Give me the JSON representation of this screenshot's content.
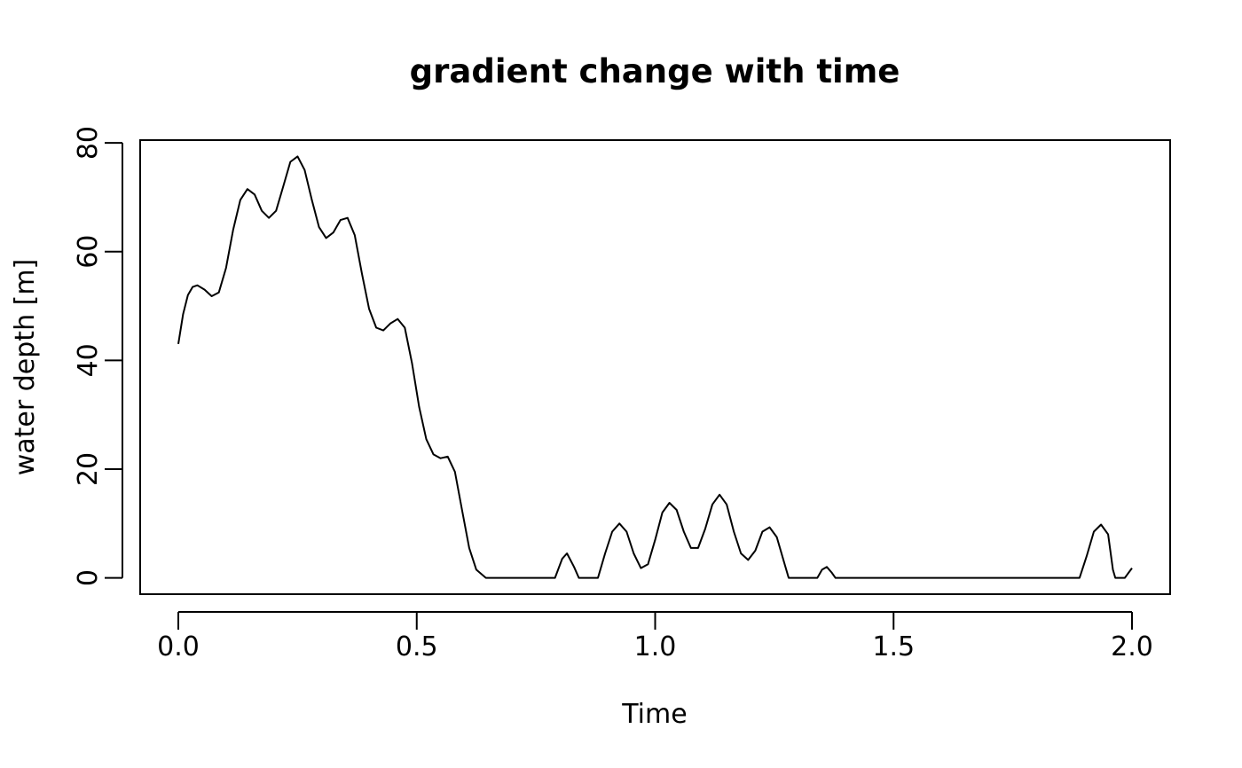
{
  "chart_data": {
    "type": "line",
    "title": "gradient change with time",
    "xlabel": "Time",
    "ylabel": "water depth [m]",
    "xlim": [
      -0.08,
      2.08
    ],
    "ylim": [
      -3,
      80.5
    ],
    "grid": false,
    "x_ticks": [
      "0.0",
      "0.5",
      "1.0",
      "1.5",
      "2.0"
    ],
    "y_ticks": [
      "0",
      "20",
      "40",
      "60",
      "80"
    ],
    "series": [
      {
        "color": "#000000",
        "points": [
          [
            0.0,
            43
          ],
          [
            0.01,
            48.5
          ],
          [
            0.02,
            52
          ],
          [
            0.03,
            53.5
          ],
          [
            0.04,
            53.8
          ],
          [
            0.055,
            53
          ],
          [
            0.07,
            51.8
          ],
          [
            0.085,
            52.5
          ],
          [
            0.1,
            57
          ],
          [
            0.115,
            64
          ],
          [
            0.13,
            69.5
          ],
          [
            0.145,
            71.5
          ],
          [
            0.16,
            70.5
          ],
          [
            0.175,
            67.5
          ],
          [
            0.19,
            66.2
          ],
          [
            0.205,
            67.5
          ],
          [
            0.22,
            72
          ],
          [
            0.235,
            76.5
          ],
          [
            0.25,
            77.5
          ],
          [
            0.265,
            75
          ],
          [
            0.28,
            69.5
          ],
          [
            0.295,
            64.5
          ],
          [
            0.31,
            62.5
          ],
          [
            0.325,
            63.5
          ],
          [
            0.34,
            65.8
          ],
          [
            0.355,
            66.2
          ],
          [
            0.37,
            63
          ],
          [
            0.385,
            56
          ],
          [
            0.4,
            49.5
          ],
          [
            0.415,
            46
          ],
          [
            0.43,
            45.5
          ],
          [
            0.445,
            46.8
          ],
          [
            0.46,
            47.6
          ],
          [
            0.475,
            46
          ],
          [
            0.49,
            39.5
          ],
          [
            0.505,
            31.5
          ],
          [
            0.52,
            25.5
          ],
          [
            0.535,
            22.7
          ],
          [
            0.55,
            22
          ],
          [
            0.565,
            22.3
          ],
          [
            0.58,
            19.5
          ],
          [
            0.595,
            12.5
          ],
          [
            0.61,
            5.5
          ],
          [
            0.625,
            1.5
          ],
          [
            0.645,
            0
          ],
          [
            0.79,
            0
          ],
          [
            0.805,
            3.5
          ],
          [
            0.815,
            4.5
          ],
          [
            0.83,
            2
          ],
          [
            0.84,
            0
          ],
          [
            0.88,
            0
          ],
          [
            0.895,
            4.5
          ],
          [
            0.91,
            8.5
          ],
          [
            0.925,
            10
          ],
          [
            0.94,
            8.5
          ],
          [
            0.955,
            4.5
          ],
          [
            0.97,
            1.8
          ],
          [
            0.985,
            2.5
          ],
          [
            1.0,
            7
          ],
          [
            1.015,
            12
          ],
          [
            1.03,
            13.8
          ],
          [
            1.045,
            12.5
          ],
          [
            1.06,
            8.5
          ],
          [
            1.075,
            5.5
          ],
          [
            1.09,
            5.5
          ],
          [
            1.105,
            9
          ],
          [
            1.12,
            13.5
          ],
          [
            1.135,
            15.3
          ],
          [
            1.15,
            13.5
          ],
          [
            1.165,
            8.5
          ],
          [
            1.18,
            4.5
          ],
          [
            1.195,
            3.3
          ],
          [
            1.21,
            5
          ],
          [
            1.225,
            8.5
          ],
          [
            1.24,
            9.3
          ],
          [
            1.255,
            7.5
          ],
          [
            1.27,
            3
          ],
          [
            1.28,
            0
          ],
          [
            1.34,
            0
          ],
          [
            1.35,
            1.5
          ],
          [
            1.36,
            2
          ],
          [
            1.37,
            1
          ],
          [
            1.378,
            0
          ],
          [
            1.89,
            0
          ],
          [
            1.905,
            4
          ],
          [
            1.92,
            8.5
          ],
          [
            1.935,
            9.8
          ],
          [
            1.95,
            8
          ],
          [
            1.96,
            1.5
          ],
          [
            1.965,
            0
          ],
          [
            1.985,
            0
          ],
          [
            2.0,
            1.8
          ]
        ]
      }
    ]
  }
}
